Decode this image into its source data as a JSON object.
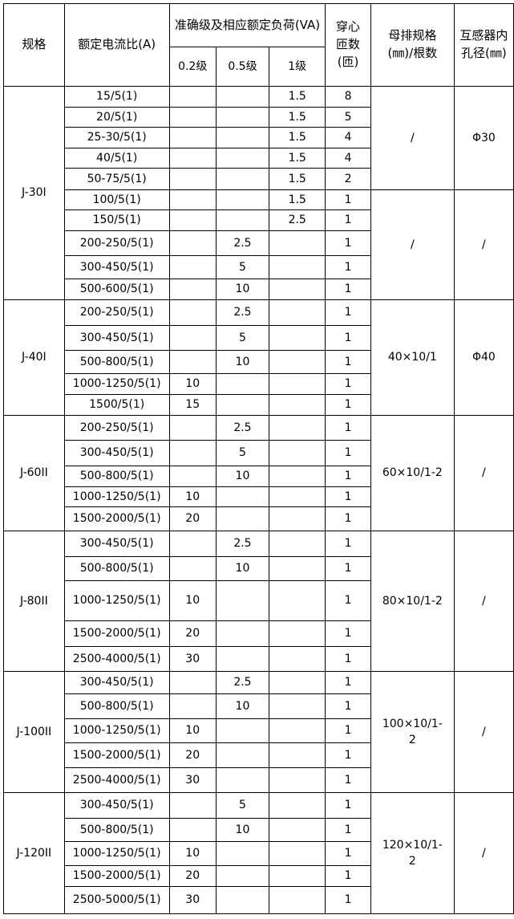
{
  "header": {
    "spec": "规格",
    "ratio": "额定电流比(A)",
    "accuracy": "准确级及相应额定负荷(VA)",
    "class_02": "0.2级",
    "class_05": "0.5级",
    "class_1": "1级",
    "turns": "穿心匝数(匝)",
    "busbar": "母排规格(㎜)/根数",
    "bore": "互感器内孔径(㎜)"
  },
  "groups": [
    {
      "spec": "J-30I",
      "rows": [
        {
          "ratio": "15/5(1)",
          "c02": "",
          "c05": "",
          "c1": "1.5",
          "turns": "8"
        },
        {
          "ratio": "20/5(1)",
          "c02": "",
          "c05": "",
          "c1": "1.5",
          "turns": "5"
        },
        {
          "ratio": "25-30/5(1)",
          "c02": "",
          "c05": "",
          "c1": "1.5",
          "turns": "4"
        },
        {
          "ratio": "40/5(1)",
          "c02": "",
          "c05": "",
          "c1": "1.5",
          "turns": "4"
        },
        {
          "ratio": "50-75/5(1)",
          "c02": "",
          "c05": "",
          "c1": "1.5",
          "turns": "2"
        },
        {
          "ratio": "100/5(1)",
          "c02": "",
          "c05": "",
          "c1": "1.5",
          "turns": "1"
        },
        {
          "ratio": "150/5(1)",
          "c02": "",
          "c05": "",
          "c1": "2.5",
          "turns": "1"
        },
        {
          "ratio": "200-250/5(1)",
          "c02": "",
          "c05": "2.5",
          "c1": "",
          "turns": "1"
        },
        {
          "ratio": "300-450/5(1)",
          "c02": "",
          "c05": "5",
          "c1": "",
          "turns": "1"
        },
        {
          "ratio": "500-600/5(1)",
          "c02": "",
          "c05": "10",
          "c1": "",
          "turns": "1"
        }
      ],
      "merged": [
        {
          "span": 5,
          "busbar": "/",
          "bore": "Φ30"
        },
        {
          "span": 5,
          "busbar": "/",
          "bore": "/"
        }
      ]
    },
    {
      "spec": "J-40I",
      "rows": [
        {
          "ratio": "200-250/5(1)",
          "c02": "",
          "c05": "2.5",
          "c1": "",
          "turns": "1"
        },
        {
          "ratio": "300-450/5(1)",
          "c02": "",
          "c05": "5",
          "c1": "",
          "turns": "1"
        },
        {
          "ratio": "500-800/5(1)",
          "c02": "",
          "c05": "10",
          "c1": "",
          "turns": "1"
        },
        {
          "ratio": "1000-1250/5(1)",
          "c02": "10",
          "c05": "",
          "c1": "",
          "turns": "1"
        },
        {
          "ratio": "1500/5(1)",
          "c02": "15",
          "c05": "",
          "c1": "",
          "turns": "1"
        }
      ],
      "merged": [
        {
          "span": 5,
          "busbar": "40×10/1",
          "bore": "Φ40"
        }
      ]
    },
    {
      "spec": "J-60II",
      "rows": [
        {
          "ratio": "200-250/5(1)",
          "c02": "",
          "c05": "2.5",
          "c1": "",
          "turns": "1"
        },
        {
          "ratio": "300-450/5(1)",
          "c02": "",
          "c05": "5",
          "c1": "",
          "turns": "1"
        },
        {
          "ratio": "500-800/5(1)",
          "c02": "",
          "c05": "10",
          "c1": "",
          "turns": "1"
        },
        {
          "ratio": "1000-1250/5(1)",
          "c02": "10",
          "c05": "",
          "c1": "",
          "turns": "1"
        },
        {
          "ratio": "1500-2000/5(1)",
          "c02": "20",
          "c05": "",
          "c1": "",
          "turns": "1"
        }
      ],
      "merged": [
        {
          "span": 5,
          "busbar": "60×10/1-2",
          "bore": "/"
        }
      ]
    },
    {
      "spec": "J-80II",
      "rows": [
        {
          "ratio": "300-450/5(1)",
          "c02": "",
          "c05": "2.5",
          "c1": "",
          "turns": "1"
        },
        {
          "ratio": "500-800/5(1)",
          "c02": "",
          "c05": "10",
          "c1": "",
          "turns": "1"
        },
        {
          "ratio": "1000-1250/5(1)",
          "c02": "10",
          "c05": "",
          "c1": "",
          "turns": "1"
        },
        {
          "ratio": "1500-2000/5(1)",
          "c02": "20",
          "c05": "",
          "c1": "",
          "turns": "1"
        },
        {
          "ratio": "2500-4000/5(1)",
          "c02": "30",
          "c05": "",
          "c1": "",
          "turns": "1"
        }
      ],
      "merged": [
        {
          "span": 5,
          "busbar": "80×10/1-2",
          "bore": "/"
        }
      ]
    },
    {
      "spec": "J-100II",
      "rows": [
        {
          "ratio": "300-450/5(1)",
          "c02": "",
          "c05": "2.5",
          "c1": "",
          "turns": "1"
        },
        {
          "ratio": "500-800/5(1)",
          "c02": "",
          "c05": "10",
          "c1": "",
          "turns": "1"
        },
        {
          "ratio": "1000-1250/5(1)",
          "c02": "10",
          "c05": "",
          "c1": "",
          "turns": "1"
        },
        {
          "ratio": "1500-2000/5(1)",
          "c02": "20",
          "c05": "",
          "c1": "",
          "turns": "1"
        },
        {
          "ratio": "2500-4000/5(1)",
          "c02": "30",
          "c05": "",
          "c1": "",
          "turns": "1"
        }
      ],
      "merged": [
        {
          "span": 5,
          "busbar": "100×10/1-2",
          "bore": "/"
        }
      ]
    },
    {
      "spec": "J-120II",
      "rows": [
        {
          "ratio": "300-450/5(1)",
          "c02": "",
          "c05": "5",
          "c1": "",
          "turns": "1"
        },
        {
          "ratio": "500-800/5(1)",
          "c02": "",
          "c05": "10",
          "c1": "",
          "turns": "1"
        },
        {
          "ratio": "1000-1250/5(1)",
          "c02": "10",
          "c05": "",
          "c1": "",
          "turns": "1"
        },
        {
          "ratio": "1500-2000/5(1)",
          "c02": "20",
          "c05": "",
          "c1": "",
          "turns": "1"
        },
        {
          "ratio": "2500-5000/5(1)",
          "c02": "30",
          "c05": "",
          "c1": "",
          "turns": "1"
        }
      ],
      "merged": [
        {
          "span": 5,
          "busbar": "120×10/1-2",
          "bore": "/"
        }
      ]
    }
  ]
}
